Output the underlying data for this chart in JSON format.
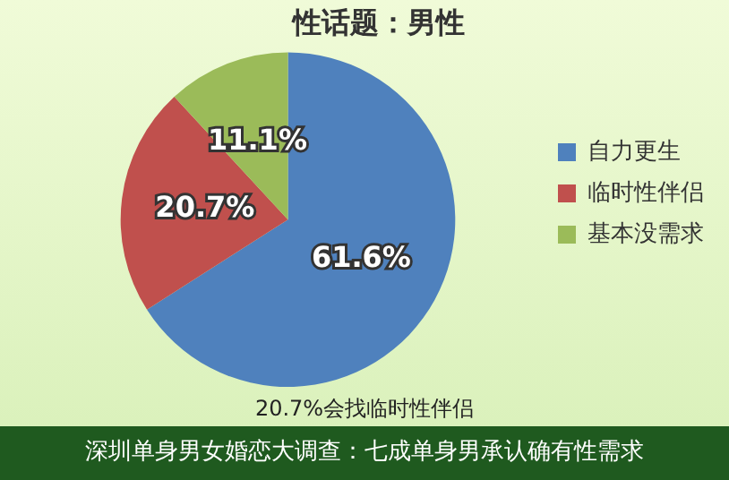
{
  "chart_data": {
    "type": "pie",
    "title": "性话题：男性",
    "categories": [
      "自力更生",
      "临时性伴侣",
      "基本没需求"
    ],
    "values": [
      61.6,
      20.7,
      11.1
    ],
    "colors": [
      "#4f81bd",
      "#c0504d",
      "#9bbb59"
    ],
    "value_labels": [
      "61.6%",
      "20.7%",
      "11.1%"
    ],
    "legend": "right",
    "annotations": [
      "20.7%会找临时性伴侣",
      "深圳单身男女婚恋大调查：七成单身男承认确有性需求"
    ]
  }
}
